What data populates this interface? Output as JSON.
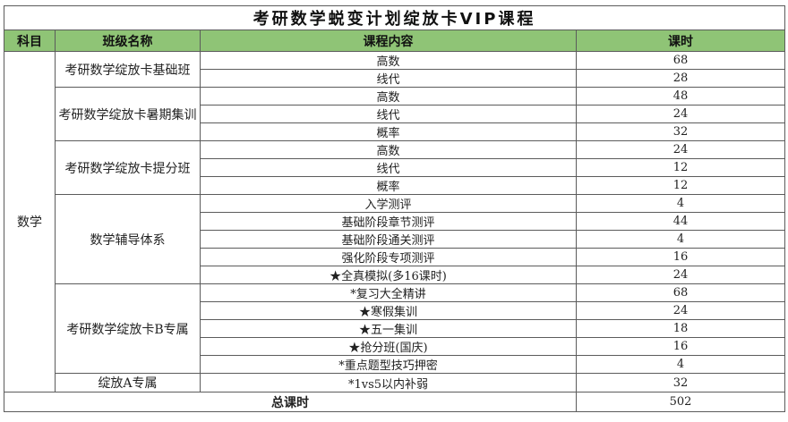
{
  "title": "考研数学蜕变计划绽放卡VIP课程",
  "headers": {
    "subject": "科目",
    "class_name": "班级名称",
    "content": "课程内容",
    "hours": "课时"
  },
  "subject": "数学",
  "groups": [
    {
      "name": "考研数学绽放卡基础班",
      "items": [
        {
          "content": "高数",
          "hours": "68"
        },
        {
          "content": "线代",
          "hours": "28"
        }
      ]
    },
    {
      "name": "考研数学绽放卡暑期集训",
      "items": [
        {
          "content": "高数",
          "hours": "48"
        },
        {
          "content": "线代",
          "hours": "24"
        },
        {
          "content": "概率",
          "hours": "32"
        }
      ]
    },
    {
      "name": "考研数学绽放卡提分班",
      "items": [
        {
          "content": "高数",
          "hours": "24"
        },
        {
          "content": "线代",
          "hours": "12"
        },
        {
          "content": "概率",
          "hours": "12"
        }
      ]
    },
    {
      "name": "数学辅导体系",
      "items": [
        {
          "content": "入学测评",
          "hours": "4"
        },
        {
          "content": "基础阶段章节测评",
          "hours": "44"
        },
        {
          "content": "基础阶段通关测评",
          "hours": "4"
        },
        {
          "content": "强化阶段专项测评",
          "hours": "16"
        },
        {
          "content": "★全真模拟(多16课时)",
          "hours": "24"
        }
      ]
    },
    {
      "name": "考研数学绽放卡B专属",
      "items": [
        {
          "content": "*复习大全精讲",
          "hours": "68"
        },
        {
          "content": "★寒假集训",
          "hours": "24"
        },
        {
          "content": "★五一集训",
          "hours": "18"
        },
        {
          "content": "★抢分班(国庆)",
          "hours": "16"
        },
        {
          "content": "*重点题型技巧押密",
          "hours": "4"
        }
      ]
    },
    {
      "name": "绽放A专属",
      "items": [
        {
          "content": "*1vs5以内补弱",
          "hours": "32"
        }
      ]
    }
  ],
  "total": {
    "label": "总课时",
    "hours": "502"
  }
}
